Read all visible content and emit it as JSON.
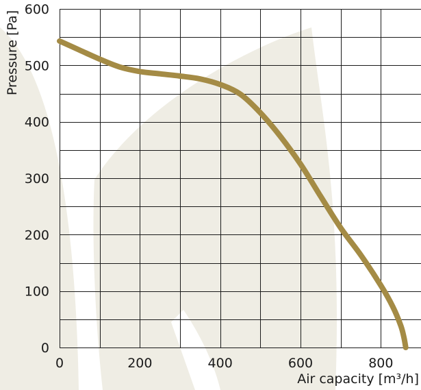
{
  "chart_data": {
    "type": "line",
    "title": "",
    "xlabel": "Air capacity [m³/h]",
    "ylabel": "Pressure [Pa]",
    "xlim": [
      0,
      900
    ],
    "ylim": [
      0,
      600
    ],
    "x_ticks": [
      0,
      200,
      400,
      600,
      800
    ],
    "x_tick_labels": [
      "0",
      "200",
      "400",
      "600",
      "800"
    ],
    "y_ticks": [
      0,
      100,
      200,
      300,
      400,
      500,
      600
    ],
    "y_tick_labels": [
      "0",
      "100",
      "200",
      "300",
      "400",
      "500",
      "600"
    ],
    "grid": true,
    "legend": "none",
    "series": [
      {
        "color": "#a48b45",
        "x": [
          0,
          50,
          100,
          150,
          200,
          250,
          300,
          350,
          400,
          450,
          500,
          550,
          600,
          650,
          700,
          750,
          800,
          830,
          850,
          858,
          862
        ],
        "y": [
          543,
          527,
          511,
          497,
          489,
          485,
          481,
          476,
          466,
          449,
          416,
          374,
          325,
          268,
          212,
          164,
          110,
          72,
          38,
          16,
          0
        ]
      }
    ]
  },
  "colors": {
    "curve": "#a48b45",
    "grid": "#1a1a1a",
    "watermark": "#efede4",
    "text": "#1a1a1a"
  }
}
